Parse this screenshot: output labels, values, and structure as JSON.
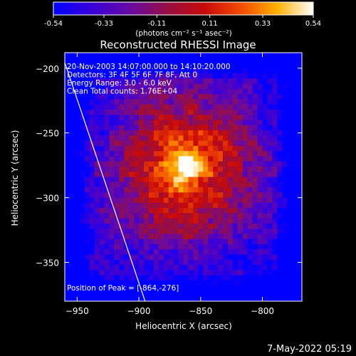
{
  "colorbar": {
    "ticks": [
      "-0.54",
      "-0.33",
      "-0.11",
      "0.11",
      "0.33",
      "0.54"
    ],
    "units_label": "(photons cm⁻² s⁻¹ asec⁻²)",
    "range": [
      -0.54,
      0.54
    ]
  },
  "chart_data": {
    "type": "heatmap",
    "title": "Reconstructed RHESSI Image",
    "xlabel": "Heliocentric X (arcsec)",
    "ylabel": "Heliocentric Y (arcsec)",
    "xlim": [
      -960,
      -768
    ],
    "ylim": [
      -380,
      -188
    ],
    "xticks": [
      -950,
      -900,
      -850,
      -800
    ],
    "yticks": [
      -200,
      -250,
      -300,
      -350
    ],
    "peak": [
      -864,
      -276
    ],
    "peak_value": 0.54,
    "limb_x": [
      -962,
      -895
    ],
    "limb_y": [
      -190,
      -380
    ],
    "annotations": [
      "20-Nov-2003 14:07:00.000 to 14:10:20.000",
      "Detectors: 3F 4F 5F 6F 7F 8F, Att 0",
      "Energy Range: 3.0 - 6.0 keV",
      "Clean    Total counts: 1.76E+04"
    ],
    "peak_label": "Position of Peak = [-864,-276]",
    "grid": false
  },
  "footer": {
    "timestamp": "7-May-2022 05:19"
  }
}
